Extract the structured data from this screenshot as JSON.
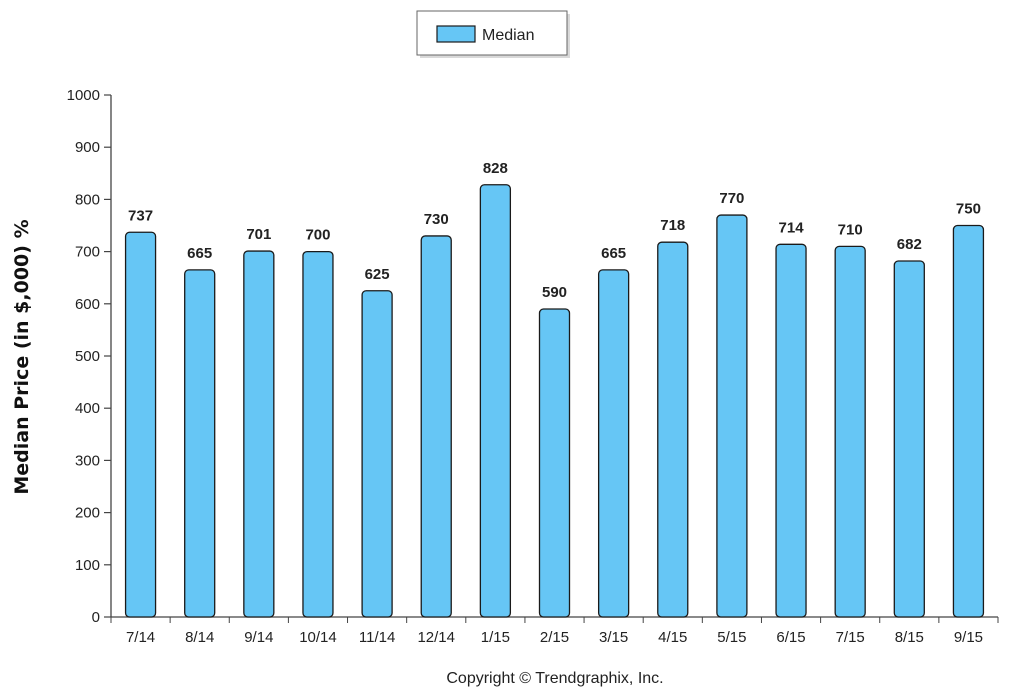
{
  "chart_data": {
    "type": "bar",
    "categories": [
      "7/14",
      "8/14",
      "9/14",
      "10/14",
      "11/14",
      "12/14",
      "1/15",
      "2/15",
      "3/15",
      "4/15",
      "5/15",
      "6/15",
      "7/15",
      "8/15",
      "9/15"
    ],
    "series": [
      {
        "name": "Median",
        "values": [
          737,
          665,
          701,
          700,
          625,
          730,
          828,
          590,
          665,
          718,
          770,
          714,
          710,
          682,
          750
        ]
      }
    ],
    "ylabel": "Median Price (in $,000) %",
    "xlabel": "",
    "ylim": [
      0,
      1000
    ],
    "yticks": [
      0,
      100,
      200,
      300,
      400,
      500,
      600,
      700,
      800,
      900,
      1000
    ],
    "grid": false,
    "legend_position": "top-center",
    "bar_color": "#66c6f5",
    "bar_stroke": "#1a1a1a"
  },
  "footer": {
    "copyright": "Copyright © Trendgraphix, Inc."
  }
}
